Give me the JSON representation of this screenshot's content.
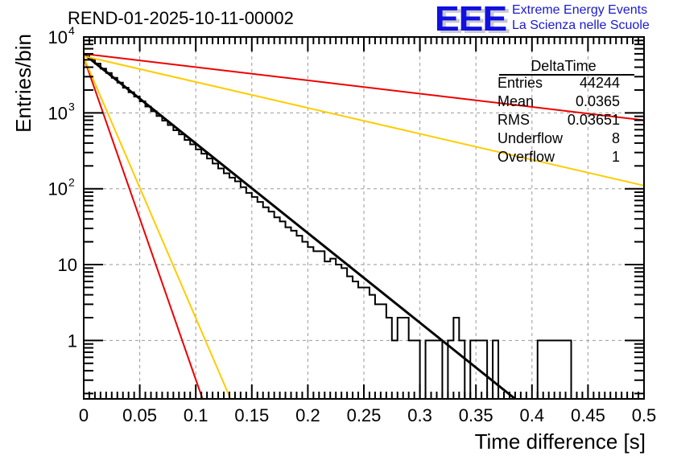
{
  "chart_data": {
    "type": "bar",
    "subtype": "histogram-log-y",
    "title": "REND-01-2025-10-11-00002",
    "xlabel": "Time difference [s]",
    "ylabel": "Entries/bin",
    "xlim": [
      0,
      0.5
    ],
    "ylim": [
      0.17,
      10000
    ],
    "yscale": "log",
    "grid": true,
    "bin_width": 0.005,
    "x_ticks": [
      "0",
      "0.05",
      "0.1",
      "0.15",
      "0.2",
      "0.25",
      "0.3",
      "0.35",
      "0.4",
      "0.45",
      "0.5"
    ],
    "x_tick_values": [
      0,
      0.05,
      0.1,
      0.15,
      0.2,
      0.25,
      0.3,
      0.35,
      0.4,
      0.45,
      0.5
    ],
    "y_ticks": [
      {
        "value": 1,
        "base": "1",
        "exp": ""
      },
      {
        "value": 10,
        "base": "10",
        "exp": ""
      },
      {
        "value": 100,
        "base": "10",
        "exp": "2"
      },
      {
        "value": 1000,
        "base": "10",
        "exp": "3"
      },
      {
        "value": 10000,
        "base": "10",
        "exp": "4"
      }
    ],
    "histogram": {
      "name": "DeltaTime",
      "color": "#000000",
      "bin_counts": [
        5900,
        5100,
        4450,
        3830,
        3350,
        2900,
        2500,
        2140,
        1870,
        1640,
        1420,
        1210,
        1050,
        910,
        790,
        690,
        590,
        520,
        440,
        385,
        330,
        290,
        250,
        215,
        185,
        160,
        140,
        125,
        105,
        88,
        78,
        67,
        57,
        50,
        42,
        37,
        31,
        28,
        24,
        20,
        17,
        15,
        15,
        11,
        12,
        10,
        9,
        7,
        6,
        5,
        5,
        4,
        3,
        3,
        2,
        1,
        2,
        2,
        1,
        1,
        0,
        1,
        1,
        1,
        0,
        1,
        2,
        1,
        0,
        1,
        1,
        1,
        0,
        1,
        0,
        0,
        0,
        0,
        0,
        0,
        0,
        1,
        1,
        1,
        1,
        1,
        1,
        0,
        0,
        0,
        0,
        0,
        0,
        0,
        0,
        0,
        0,
        0,
        0,
        0
      ]
    },
    "fits": [
      {
        "name": "exponential-fit",
        "color": "#000000",
        "x": [
          0,
          0.385
        ],
        "y": [
          6000,
          0.17
        ]
      },
      {
        "name": "upper-bound-slow",
        "color": "#ee0000",
        "x": [
          0,
          0.5
        ],
        "y": [
          6000,
          800
        ]
      },
      {
        "name": "lower-bound-slow",
        "color": "#ffcc00",
        "x": [
          0,
          0.5
        ],
        "y": [
          5600,
          110
        ]
      },
      {
        "name": "upper-bound-fast",
        "color": "#ee0000",
        "x": [
          0,
          0.106
        ],
        "y": [
          5400,
          0.17
        ]
      },
      {
        "name": "lower-bound-fast",
        "color": "#ffcc00",
        "x": [
          0,
          0.131
        ],
        "y": [
          5400,
          0.17
        ]
      }
    ]
  },
  "stats_box": {
    "title": "DeltaTime",
    "rows": [
      {
        "key": "Entries",
        "value": "44244"
      },
      {
        "key": "Mean",
        "value": "0.0365"
      },
      {
        "key": "RMS",
        "value": "0.03651"
      },
      {
        "key": "Underflow",
        "value": "8"
      },
      {
        "key": "Overflow",
        "value": "1"
      }
    ]
  },
  "logo": {
    "letters": "EEE",
    "line1": "Extreme Energy Events",
    "line2": "La Scienza nelle Scuole"
  }
}
